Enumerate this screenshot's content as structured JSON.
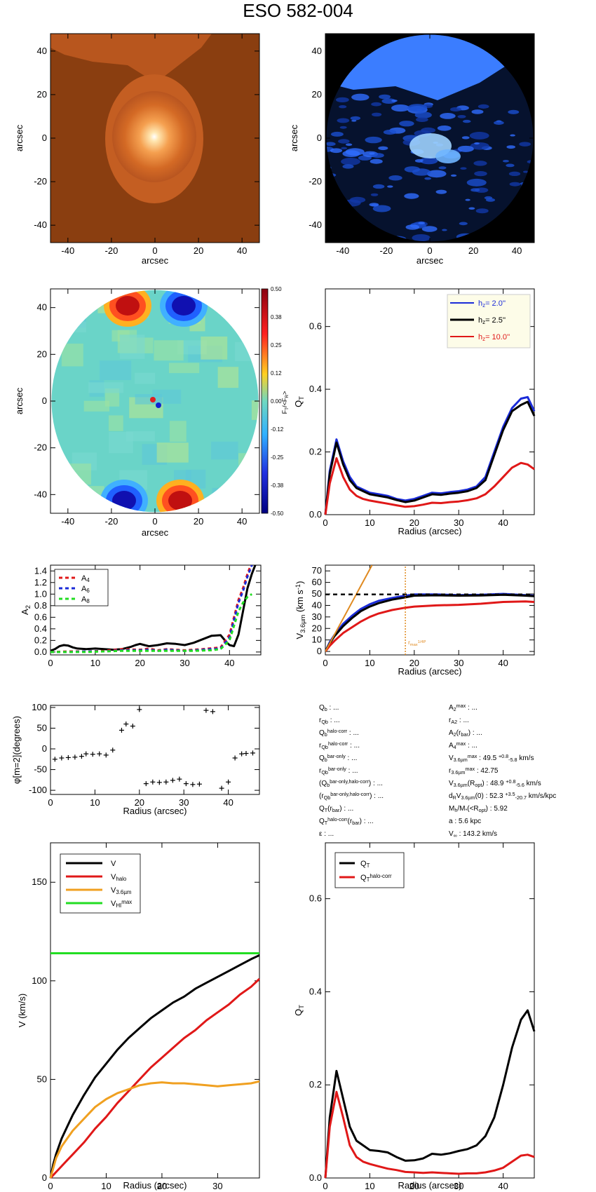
{
  "title": "ESO 582-004",
  "colors": {
    "blue": "#1a2bd8",
    "black": "#000000",
    "red": "#e01818",
    "orange": "#f0a020",
    "green": "#22dd22",
    "ocolor": "#e08a20"
  },
  "chart_data": [
    {
      "type": "heatmap",
      "id": "panel-image-orange",
      "xlabel": "arcsec",
      "ylabel": "arcsec",
      "xlim": [
        -48,
        48
      ],
      "ylim": [
        -48,
        48
      ],
      "xticks": [
        -40,
        -20,
        0,
        20,
        40
      ],
      "yticks": [
        -40,
        -20,
        0,
        20,
        40
      ]
    },
    {
      "type": "heatmap",
      "id": "panel-image-blue",
      "xlabel": "arcsec",
      "ylabel": "arcsec",
      "xlim": [
        -48,
        48
      ],
      "ylim": [
        -48,
        48
      ],
      "xticks": [
        -40,
        -20,
        0,
        20,
        40
      ],
      "yticks": [
        -40,
        -20,
        0,
        20,
        40
      ]
    },
    {
      "type": "heatmap",
      "id": "panel-force-ratio",
      "xlabel": "arcsec",
      "ylabel": "arcsec",
      "xlim": [
        -48,
        48
      ],
      "ylim": [
        -48,
        48
      ],
      "xticks": [
        -40,
        -20,
        0,
        20,
        40
      ],
      "yticks": [
        -40,
        -20,
        0,
        20,
        40
      ],
      "colorbar_label": "F_T/<F_R>",
      "colorbar_ticks": [
        "0.50",
        "0.38",
        "0.25",
        "0.12",
        "0.00",
        "-0.12",
        "-0.25",
        "-0.38",
        "-0.50"
      ]
    },
    {
      "type": "line",
      "id": "panel-qt-hz",
      "xlabel": "Radius (arcsec)",
      "ylabel": "Q_T",
      "xlim": [
        0,
        47
      ],
      "ylim": [
        0,
        0.72
      ],
      "xticks": [
        0,
        10,
        20,
        30,
        40
      ],
      "yticks": [
        "0.0",
        "0.2",
        "0.4",
        "0.6"
      ],
      "legend": [
        "h_z= 2.0''",
        "h_z= 2.5''",
        "h_z= 10.0''"
      ],
      "x": [
        0,
        1,
        2.5,
        4,
        5.5,
        7,
        8.5,
        10,
        12,
        14,
        16,
        18,
        20,
        22,
        24,
        26,
        28,
        30,
        32,
        34,
        36,
        38,
        40,
        42,
        44,
        45.5,
        47
      ],
      "series": [
        {
          "name": "h_z= 2.0''",
          "values": [
            0,
            0.14,
            0.24,
            0.17,
            0.12,
            0.09,
            0.08,
            0.07,
            0.065,
            0.06,
            0.05,
            0.045,
            0.05,
            0.06,
            0.07,
            0.068,
            0.072,
            0.075,
            0.08,
            0.09,
            0.12,
            0.2,
            0.28,
            0.34,
            0.37,
            0.375,
            0.33
          ]
        },
        {
          "name": "h_z= 2.5''",
          "values": [
            0,
            0.13,
            0.23,
            0.16,
            0.11,
            0.085,
            0.075,
            0.065,
            0.06,
            0.055,
            0.047,
            0.04,
            0.045,
            0.055,
            0.065,
            0.063,
            0.067,
            0.07,
            0.075,
            0.085,
            0.11,
            0.19,
            0.27,
            0.33,
            0.35,
            0.36,
            0.315
          ]
        },
        {
          "name": "h_z= 10.0''",
          "values": [
            0,
            0.1,
            0.18,
            0.12,
            0.08,
            0.06,
            0.05,
            0.045,
            0.04,
            0.035,
            0.03,
            0.025,
            0.027,
            0.032,
            0.038,
            0.037,
            0.04,
            0.042,
            0.046,
            0.052,
            0.065,
            0.09,
            0.12,
            0.15,
            0.165,
            0.16,
            0.145
          ]
        }
      ]
    },
    {
      "type": "line",
      "id": "panel-amplitudes",
      "xlabel": "",
      "ylabel": "A_2",
      "xlim": [
        0,
        47
      ],
      "ylim": [
        -0.05,
        1.5
      ],
      "xticks": [
        0,
        10,
        20,
        30,
        40
      ],
      "yticks": [
        "0.0",
        "0.2",
        "0.4",
        "0.6",
        "0.8",
        "1.0",
        "1.2",
        "1.4"
      ],
      "legend": [
        "A_4",
        "A_6",
        "A_8"
      ],
      "series": [
        {
          "name": "A_2",
          "x": [
            0,
            1,
            2,
            3,
            4,
            5,
            6,
            8,
            10,
            12,
            14,
            16,
            18,
            19,
            20,
            21,
            22,
            24,
            26,
            28,
            30,
            32,
            34,
            36,
            38,
            39,
            40,
            41,
            42,
            43,
            44,
            45,
            46
          ],
          "values": [
            0.02,
            0.05,
            0.1,
            0.12,
            0.11,
            0.08,
            0.06,
            0.05,
            0.06,
            0.05,
            0.04,
            0.05,
            0.09,
            0.12,
            0.14,
            0.12,
            0.1,
            0.12,
            0.15,
            0.14,
            0.12,
            0.16,
            0.22,
            0.28,
            0.29,
            0.2,
            0.12,
            0.1,
            0.3,
            0.7,
            1.1,
            1.35,
            1.55
          ]
        },
        {
          "name": "A_4",
          "x": [
            0,
            4,
            8,
            12,
            16,
            20,
            22,
            24,
            26,
            28,
            30,
            34,
            38,
            40,
            41,
            42,
            43,
            44,
            45
          ],
          "values": [
            0.0,
            0.01,
            0.01,
            0.02,
            0.05,
            0.04,
            0.06,
            0.03,
            0.05,
            0.04,
            0.03,
            0.05,
            0.08,
            0.3,
            0.6,
            0.9,
            1.1,
            1.35,
            1.55
          ]
        },
        {
          "name": "A_6",
          "x": [
            0,
            4,
            8,
            12,
            16,
            20,
            22,
            24,
            26,
            28,
            30,
            34,
            38,
            40,
            41,
            42,
            43,
            44,
            45
          ],
          "values": [
            0.0,
            0.0,
            0.01,
            0.01,
            0.03,
            0.03,
            0.04,
            0.02,
            0.04,
            0.03,
            0.02,
            0.04,
            0.06,
            0.25,
            0.55,
            0.85,
            1.05,
            1.3,
            1.5
          ]
        },
        {
          "name": "A_8",
          "x": [
            0,
            4,
            8,
            12,
            16,
            20,
            24,
            28,
            32,
            36,
            38,
            40,
            41,
            42,
            43,
            44,
            45
          ],
          "values": [
            0.0,
            0.0,
            0.0,
            0.01,
            0.02,
            0.02,
            0.02,
            0.02,
            0.02,
            0.03,
            0.05,
            0.2,
            0.45,
            0.7,
            0.85,
            0.95,
            1.0
          ]
        }
      ]
    },
    {
      "type": "line",
      "id": "panel-rotcurve-36",
      "xlabel": "Radius (arcsec)",
      "ylabel": "V_3.6µm (km s⁻¹)",
      "xlim": [
        0,
        47
      ],
      "ylim": [
        -3,
        75
      ],
      "xticks": [
        0,
        10,
        20,
        30,
        40
      ],
      "yticks": [
        0,
        10,
        20,
        30,
        40,
        50,
        60,
        70
      ],
      "vmax_line": 49.5,
      "rmax_marker": 18,
      "marker_label": "r_max^1/4P_max",
      "series": [
        {
          "name": "blue",
          "x": [
            0,
            1,
            2,
            4,
            6,
            8,
            10,
            12,
            15,
            18,
            20,
            25,
            30,
            35,
            40,
            45,
            47
          ],
          "values": [
            0,
            8,
            14,
            24,
            31,
            37,
            41,
            44,
            46.5,
            48.5,
            49.5,
            49.5,
            49,
            49.2,
            50,
            49,
            48.5
          ]
        },
        {
          "name": "black",
          "x": [
            0,
            1,
            2,
            4,
            6,
            8,
            10,
            12,
            15,
            18,
            20,
            25,
            30,
            35,
            40,
            45,
            47
          ],
          "values": [
            0,
            7,
            13,
            22,
            29,
            35,
            39,
            42,
            45,
            47,
            48.5,
            48.8,
            48.5,
            48.7,
            49.3,
            48.5,
            48
          ]
        },
        {
          "name": "red",
          "x": [
            0,
            1,
            2,
            4,
            6,
            8,
            10,
            12,
            15,
            18,
            20,
            25,
            30,
            35,
            40,
            45,
            47
          ],
          "values": [
            0,
            5,
            9,
            16,
            21,
            26,
            30,
            33,
            36,
            38,
            39,
            40,
            40.5,
            41.5,
            43,
            43.5,
            43
          ]
        },
        {
          "name": "orange",
          "x": [
            0,
            10.5
          ],
          "values": [
            0,
            75
          ]
        }
      ]
    },
    {
      "type": "scatter",
      "id": "panel-phase",
      "xlabel": "Radius (arcsec)",
      "ylabel": "φ[m=2](degrees)",
      "xlim": [
        0,
        47
      ],
      "ylim": [
        -110,
        105
      ],
      "xticks": [
        0,
        10,
        20,
        30,
        40
      ],
      "yticks": [
        -100,
        -50,
        0,
        50,
        100
      ],
      "x": [
        1,
        2.5,
        4,
        5.5,
        7,
        8,
        9.5,
        11,
        12.5,
        14,
        16,
        17,
        18.5,
        20,
        21.5,
        23,
        24.5,
        26,
        27.5,
        29,
        30.5,
        32,
        33.5,
        35,
        36.5,
        38.5,
        40,
        41.5,
        43,
        44,
        45.5
      ],
      "y": [
        -25,
        -22,
        -21,
        -20,
        -18,
        -12,
        -13,
        -12,
        -15,
        -3,
        45,
        60,
        55,
        95,
        -84,
        -80,
        -81,
        -80,
        -76,
        -73,
        -84,
        -86,
        -85,
        93,
        90,
        -95,
        -80,
        -22,
        -12,
        -11,
        -10
      ]
    },
    {
      "type": "table",
      "id": "panel-parameters",
      "left": [
        "Q_b : ...",
        "r_Qb : ...",
        "Q_b^halo-corr : ...",
        "r_Qb^halo-corr : ...",
        "Q_b^bar-only : ...",
        "r_Qb^bar-only : ...",
        "(Q_b^bar-only,halo-corr) : ...",
        "(r_Qb^bar-only,halo-corr) : ...",
        "Q_T(r_bar) : ...",
        "Q_T^halo-corr(r_bar) : ...",
        "ε : ..."
      ],
      "right": [
        "A_2^max : ...",
        "r_A2 : ...",
        "A_2(r_bar) : ...",
        "A_4^max : ...",
        "V_3.6µm^max :  49.5 +0.8 -5.8 km/s",
        "r_3.6µm^max :  42.75",
        "V_3.6µm(R_opt) :  48.9 +0.8 -5.6 km/s",
        "d_R V_3.6µm(0) :  52.3 +3.5 -20.7 km/s/kpc",
        "M_h/M_*(<R_opt) :  5.92",
        "a :   5.6 kpc",
        "V_∞ :  143.2 km/s"
      ]
    },
    {
      "type": "line",
      "id": "panel-rotcurve-total",
      "xlabel": "Radius (arcsec)",
      "ylabel": "V (km/s)",
      "xlim": [
        0,
        37.5
      ],
      "ylim": [
        0,
        170
      ],
      "xticks": [
        0,
        10,
        20,
        30
      ],
      "yticks": [
        0,
        50,
        100,
        150
      ],
      "legend": [
        "V",
        "V_halo",
        "V_3.6µm",
        "V_HI^max"
      ],
      "vhi_max": 114,
      "x": [
        0,
        0.5,
        1,
        2,
        3,
        4,
        6,
        8,
        10,
        12,
        14,
        16,
        18,
        20,
        22,
        24,
        26,
        28,
        30,
        32,
        34,
        36,
        37.5
      ],
      "series": [
        {
          "name": "V",
          "values": [
            0,
            7,
            12,
            20,
            26,
            32,
            42,
            51,
            58,
            65,
            71,
            76,
            81,
            85,
            89,
            92,
            96,
            99,
            102,
            105,
            108,
            111,
            113
          ]
        },
        {
          "name": "V_halo",
          "values": [
            0,
            1.5,
            3,
            6,
            9,
            12,
            18,
            25,
            31,
            38,
            44,
            50,
            56,
            61,
            66,
            71,
            75,
            80,
            84,
            88,
            93,
            97,
            101
          ]
        },
        {
          "name": "V_3.6µm",
          "values": [
            0,
            5,
            10,
            16,
            20,
            24,
            30,
            36,
            40,
            43,
            45,
            47,
            48,
            48.5,
            48,
            48,
            47.5,
            47,
            46.5,
            47,
            47.5,
            48,
            49
          ]
        }
      ]
    },
    {
      "type": "line",
      "id": "panel-qt-halo",
      "xlabel": "Radius (arcsec)",
      "ylabel": "Q_T",
      "xlim": [
        0,
        47
      ],
      "ylim": [
        0,
        0.72
      ],
      "xticks": [
        0,
        10,
        20,
        30,
        40
      ],
      "yticks": [
        "0.0",
        "0.2",
        "0.4",
        "0.6"
      ],
      "legend": [
        "Q_T",
        "Q_T^halo-corr"
      ],
      "x": [
        0,
        1,
        2.5,
        4,
        5.5,
        7,
        8.5,
        10,
        12,
        14,
        16,
        18,
        20,
        22,
        24,
        26,
        28,
        30,
        32,
        34,
        36,
        38,
        40,
        42,
        44,
        45.5,
        47
      ],
      "series": [
        {
          "name": "Q_T",
          "values": [
            0,
            0.13,
            0.23,
            0.17,
            0.11,
            0.08,
            0.07,
            0.06,
            0.058,
            0.055,
            0.045,
            0.037,
            0.038,
            0.042,
            0.052,
            0.05,
            0.053,
            0.058,
            0.062,
            0.07,
            0.09,
            0.13,
            0.2,
            0.28,
            0.34,
            0.36,
            0.315
          ]
        },
        {
          "name": "Q_T^halo-corr",
          "values": [
            0,
            0.11,
            0.185,
            0.13,
            0.07,
            0.045,
            0.035,
            0.03,
            0.025,
            0.02,
            0.017,
            0.013,
            0.012,
            0.011,
            0.012,
            0.011,
            0.01,
            0.009,
            0.01,
            0.01,
            0.012,
            0.016,
            0.022,
            0.035,
            0.048,
            0.05,
            0.045
          ]
        }
      ]
    }
  ]
}
